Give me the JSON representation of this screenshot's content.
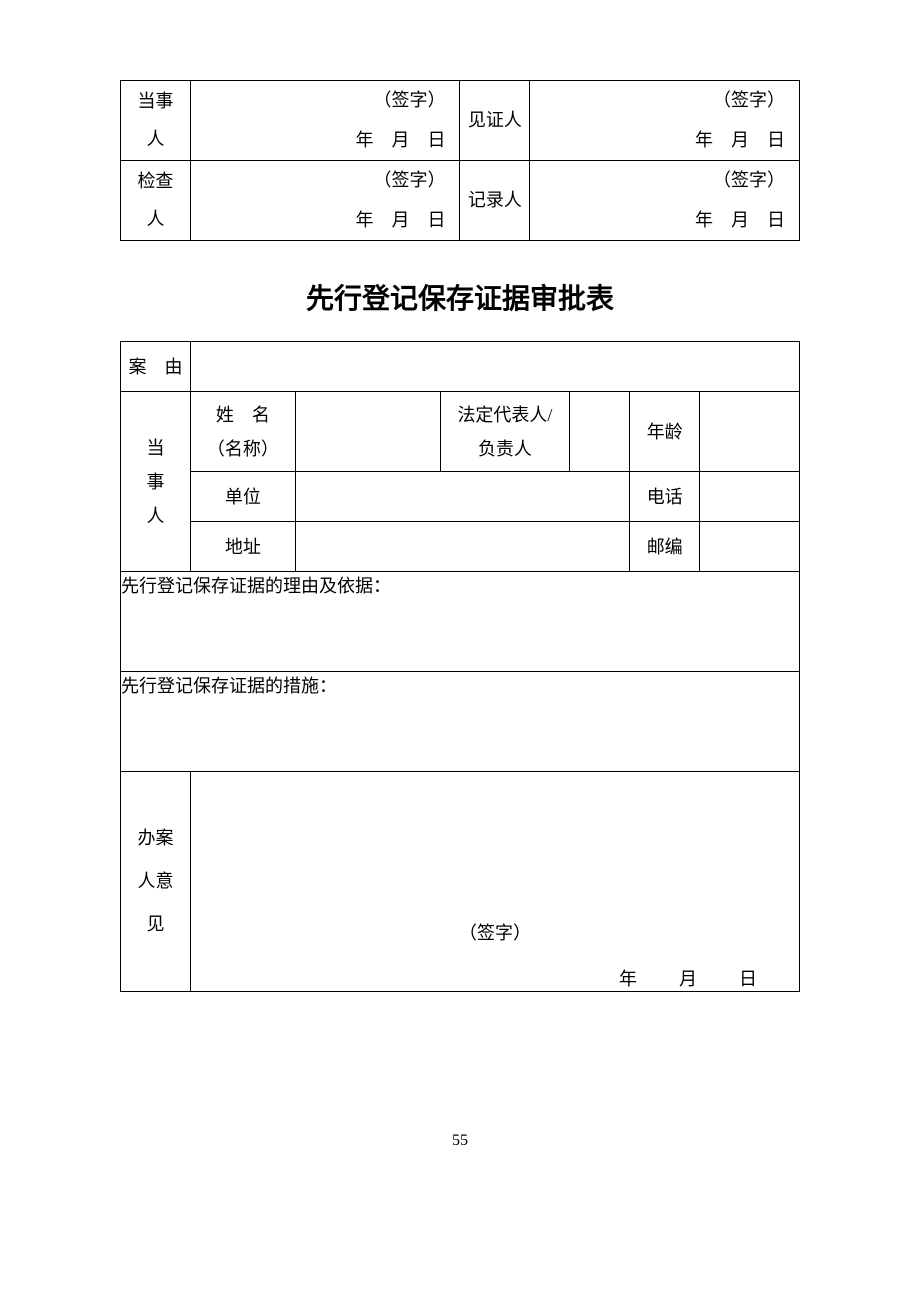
{
  "sigTable": {
    "rows": [
      {
        "leftLabel": "当事\n人",
        "leftSig": "（签字）",
        "leftDate": "年 月 日",
        "rightLabel": "见证人",
        "rightSig": "（签字）",
        "rightDate": "年 月 日"
      },
      {
        "leftLabel": "检查\n人",
        "leftSig": "（签字）",
        "leftDate": "年 月 日",
        "rightLabel": "记录人",
        "rightSig": "（签字）",
        "rightDate": "年 月 日"
      }
    ]
  },
  "title": "先行登记保存证据审批表",
  "form": {
    "caseReason": "案 由",
    "party": "当\n事\n人",
    "nameLabel": "姓 名\n（名称）",
    "repLabel": "法定代表人/\n负责人",
    "ageLabel": "年龄",
    "unitLabel": "单位",
    "phoneLabel": "电话",
    "addrLabel": "地址",
    "zipLabel": "邮编",
    "reasonSection": "先行登记保存证据的理由及依据：",
    "measureSection": "先行登记保存证据的措施：",
    "opinionLabel": "办案\n人意\n见",
    "opinionSig": "（签字）",
    "opinionDate": "年  月  日"
  },
  "pageNumber": "55",
  "styling": {
    "background": "#ffffff",
    "border": "#000000",
    "text": "#000000",
    "bodyFontSize": 18,
    "titleFontSize": 28,
    "pageWidth": 920,
    "pageHeight": 1302
  }
}
